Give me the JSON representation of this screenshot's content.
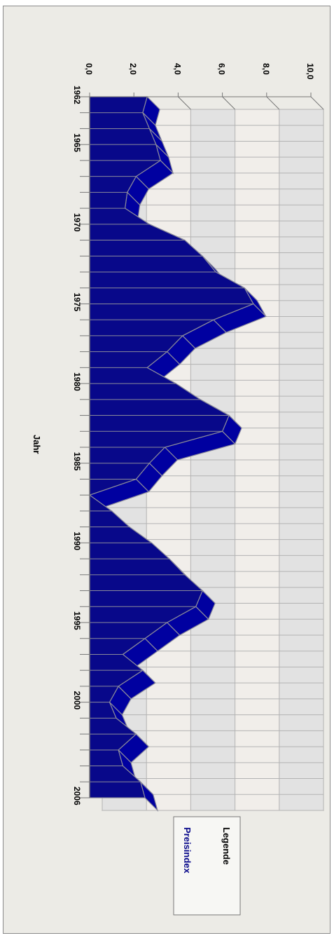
{
  "chart_data": {
    "type": "area",
    "title": "",
    "xlabel": "Jahr",
    "ylabel": "",
    "x": [
      1962,
      1963,
      1964,
      1965,
      1966,
      1967,
      1968,
      1969,
      1970,
      1971,
      1972,
      1973,
      1974,
      1975,
      1976,
      1977,
      1978,
      1979,
      1980,
      1981,
      1982,
      1983,
      1984,
      1985,
      1986,
      1987,
      1988,
      1989,
      1990,
      1991,
      1992,
      1993,
      1994,
      1995,
      1996,
      1997,
      1998,
      1999,
      2000,
      2001,
      2002,
      2003,
      2004,
      2005,
      2006
    ],
    "x_tick_labels": [
      "1962",
      "1965",
      "1970",
      "1975",
      "1980",
      "1985",
      "1990",
      "1995",
      "2000",
      "2006"
    ],
    "x_tick_values": [
      1962,
      1965,
      1970,
      1975,
      1980,
      1985,
      1990,
      1995,
      2000,
      2006
    ],
    "ylim": [
      0,
      10
    ],
    "y_tick_labels": [
      "0,0",
      "2,0",
      "4,0",
      "6,0",
      "8,0",
      "10,0"
    ],
    "y_tick_values": [
      0,
      2,
      4,
      6,
      8,
      10
    ],
    "series": [
      {
        "name": "Preisindex",
        "color": "#08088a",
        "values": [
          2.6,
          2.4,
          2.7,
          3.0,
          3.2,
          2.1,
          1.7,
          1.6,
          2.7,
          4.3,
          5.1,
          5.7,
          7.0,
          7.4,
          5.6,
          4.2,
          3.5,
          2.6,
          3.9,
          5.0,
          6.3,
          6.0,
          3.4,
          2.7,
          2.1,
          0.0,
          1.0,
          1.8,
          2.8,
          3.6,
          4.3,
          5.1,
          4.8,
          3.5,
          2.5,
          1.5,
          2.4,
          1.3,
          0.9,
          1.2,
          2.1,
          1.3,
          1.5,
          2.3,
          2.5
        ]
      }
    ],
    "grid": true,
    "legend": {
      "title": "Legende",
      "placement": "bottom",
      "entries": [
        "Preisindex"
      ]
    },
    "colors": {
      "area": "#08088a",
      "area_top": "#0000a0",
      "edge": "#8a8a9a",
      "band_light": "#f1eeea",
      "band_dark": "#e2e2e2",
      "grid": "#b3b3b3",
      "axis": "#777777"
    }
  }
}
